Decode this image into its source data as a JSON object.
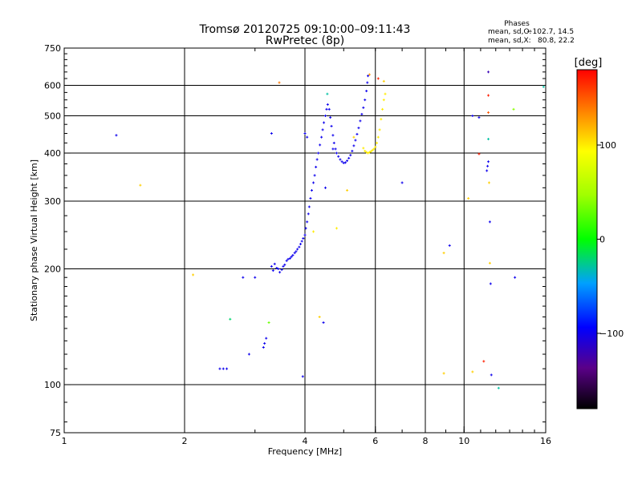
{
  "chart_data": {
    "type": "scatter",
    "title_line1": "Tromsø 20120725 09:10:00–09:11:43",
    "title_line2": "RwPretec (8p)",
    "phases": {
      "title": "Phases",
      "o_label": "mean, sd,O:",
      "o_value": "−102.7, 14.5",
      "x_label": "mean, sd,X:",
      "x_value": "80.8, 22.2"
    },
    "xlabel": "Frequency [MHz]",
    "ylabel": "Stationary phase Virtual Height [km]",
    "x_scale": "log",
    "y_scale": "log",
    "xlim": [
      1,
      16
    ],
    "ylim": [
      75,
      750
    ],
    "x_ticks": [
      {
        "value": 1,
        "label": "1"
      },
      {
        "value": 2,
        "label": "2"
      },
      {
        "value": 4,
        "label": "4"
      },
      {
        "value": 6,
        "label": "6"
      },
      {
        "value": 8,
        "label": "8"
      },
      {
        "value": 10,
        "label": "10"
      },
      {
        "value": 16,
        "label": "16"
      }
    ],
    "x_grid": [
      2,
      4,
      6,
      8,
      10
    ],
    "y_ticks": [
      {
        "value": 75,
        "label": "75"
      },
      {
        "value": 100,
        "label": "100"
      },
      {
        "value": 200,
        "label": "200"
      },
      {
        "value": 300,
        "label": "300"
      },
      {
        "value": 400,
        "label": "400"
      },
      {
        "value": 500,
        "label": "500"
      },
      {
        "value": 600,
        "label": "600"
      },
      {
        "value": 750,
        "label": "750"
      }
    ],
    "y_grid": [
      100,
      200,
      300,
      400,
      500,
      600
    ],
    "colorbar": {
      "label": "[deg]",
      "range": [
        -180,
        180
      ],
      "ticks": [
        {
          "value": 100,
          "label": "100"
        },
        {
          "value": 0,
          "label": "0"
        },
        {
          "value": -100,
          "label": "−100"
        }
      ]
    },
    "series": [
      {
        "name": "O-trace",
        "phase": -100,
        "points": [
          [
            3.3,
            203
          ],
          [
            3.33,
            198
          ],
          [
            3.36,
            206
          ],
          [
            3.4,
            201
          ],
          [
            3.43,
            200
          ],
          [
            3.46,
            196
          ],
          [
            3.5,
            199
          ],
          [
            3.53,
            203
          ],
          [
            3.56,
            205
          ],
          [
            3.6,
            210
          ],
          [
            3.63,
            212
          ],
          [
            3.67,
            213
          ],
          [
            3.7,
            215
          ],
          [
            3.73,
            217
          ],
          [
            3.77,
            220
          ],
          [
            3.8,
            222
          ],
          [
            3.83,
            225
          ],
          [
            3.87,
            228
          ],
          [
            3.9,
            232
          ],
          [
            3.93,
            236
          ],
          [
            3.96,
            240
          ],
          [
            4.0,
            245
          ],
          [
            4.02,
            255
          ],
          [
            4.05,
            265
          ],
          [
            4.08,
            278
          ],
          [
            4.1,
            290
          ],
          [
            4.13,
            305
          ],
          [
            4.16,
            320
          ],
          [
            4.2,
            335
          ],
          [
            4.23,
            350
          ],
          [
            4.26,
            368
          ],
          [
            4.29,
            385
          ],
          [
            4.32,
            400
          ],
          [
            4.36,
            420
          ],
          [
            4.4,
            440
          ],
          [
            4.43,
            460
          ],
          [
            4.46,
            480
          ],
          [
            4.5,
            500
          ],
          [
            4.53,
            520
          ],
          [
            4.56,
            535
          ],
          [
            4.6,
            520
          ],
          [
            4.63,
            495
          ],
          [
            4.66,
            470
          ],
          [
            4.7,
            445
          ],
          [
            4.73,
            425
          ],
          [
            4.77,
            410
          ],
          [
            4.8,
            400
          ],
          [
            4.85,
            392
          ],
          [
            4.9,
            385
          ],
          [
            4.95,
            380
          ],
          [
            5.0,
            377
          ],
          [
            5.05,
            378
          ],
          [
            5.1,
            382
          ],
          [
            5.15,
            388
          ],
          [
            5.2,
            395
          ],
          [
            5.25,
            405
          ],
          [
            5.3,
            418
          ],
          [
            5.35,
            432
          ],
          [
            5.4,
            448
          ],
          [
            5.45,
            465
          ],
          [
            5.5,
            485
          ],
          [
            5.55,
            505
          ],
          [
            5.6,
            525
          ],
          [
            5.65,
            550
          ],
          [
            5.7,
            580
          ],
          [
            5.73,
            610
          ],
          [
            5.75,
            635
          ]
        ]
      },
      {
        "name": "X-trace",
        "phase": 100,
        "points": [
          [
            5.6,
            412
          ],
          [
            5.65,
            405
          ],
          [
            5.7,
            402
          ],
          [
            5.75,
            400
          ],
          [
            5.8,
            402
          ],
          [
            5.85,
            404
          ],
          [
            5.9,
            407
          ],
          [
            5.95,
            410
          ],
          [
            6.0,
            415
          ],
          [
            6.05,
            425
          ],
          [
            6.1,
            440
          ],
          [
            6.15,
            460
          ],
          [
            6.2,
            490
          ],
          [
            6.25,
            520
          ],
          [
            6.3,
            550
          ],
          [
            6.35,
            570
          ]
        ]
      },
      {
        "name": "scattered",
        "points": [
          [
            1.35,
            445,
            -100
          ],
          [
            1.55,
            330,
            110
          ],
          [
            2.1,
            193,
            110
          ],
          [
            2.45,
            110,
            -100
          ],
          [
            2.5,
            110,
            -100
          ],
          [
            2.55,
            110,
            -100
          ],
          [
            2.6,
            148,
            -20
          ],
          [
            2.8,
            190,
            -100
          ],
          [
            2.9,
            120,
            -100
          ],
          [
            3.0,
            190,
            -100
          ],
          [
            3.15,
            125,
            -100
          ],
          [
            3.17,
            128,
            -100
          ],
          [
            3.2,
            132,
            -100
          ],
          [
            3.25,
            145,
            30
          ],
          [
            3.3,
            450,
            -100
          ],
          [
            3.45,
            610,
            140
          ],
          [
            3.95,
            105,
            -100
          ],
          [
            4.0,
            450,
            -100
          ],
          [
            4.05,
            440,
            -100
          ],
          [
            4.2,
            250,
            100
          ],
          [
            4.35,
            150,
            110
          ],
          [
            4.45,
            145,
            -100
          ],
          [
            4.5,
            325,
            -100
          ],
          [
            4.55,
            570,
            -30
          ],
          [
            4.7,
            410,
            -100
          ],
          [
            4.8,
            255,
            100
          ],
          [
            5.1,
            320,
            110
          ],
          [
            5.3,
            440,
            110
          ],
          [
            5.8,
            640,
            130
          ],
          [
            6.1,
            625,
            170
          ],
          [
            6.3,
            615,
            110
          ],
          [
            7.0,
            335,
            -100
          ],
          [
            8.9,
            107,
            110
          ],
          [
            8.9,
            220,
            110
          ],
          [
            9.2,
            230,
            -100
          ],
          [
            10.25,
            305,
            110
          ],
          [
            10.5,
            108,
            110
          ],
          [
            10.5,
            500,
            -100
          ],
          [
            10.9,
            495,
            -100
          ],
          [
            10.9,
            398,
            170
          ],
          [
            11.2,
            115,
            170
          ],
          [
            11.4,
            360,
            -100
          ],
          [
            11.45,
            370,
            -100
          ],
          [
            11.5,
            380,
            -100
          ],
          [
            11.5,
            435,
            -30
          ],
          [
            11.5,
            510,
            150
          ],
          [
            11.5,
            565,
            170
          ],
          [
            11.5,
            650,
            -120
          ],
          [
            11.55,
            335,
            110
          ],
          [
            11.6,
            265,
            -100
          ],
          [
            11.6,
            207,
            110
          ],
          [
            11.65,
            183,
            -100
          ],
          [
            11.7,
            106,
            -100
          ],
          [
            12.2,
            98,
            -30
          ],
          [
            13.3,
            520,
            40
          ],
          [
            13.4,
            190,
            -100
          ],
          [
            15.8,
            595,
            -30
          ]
        ]
      }
    ]
  }
}
